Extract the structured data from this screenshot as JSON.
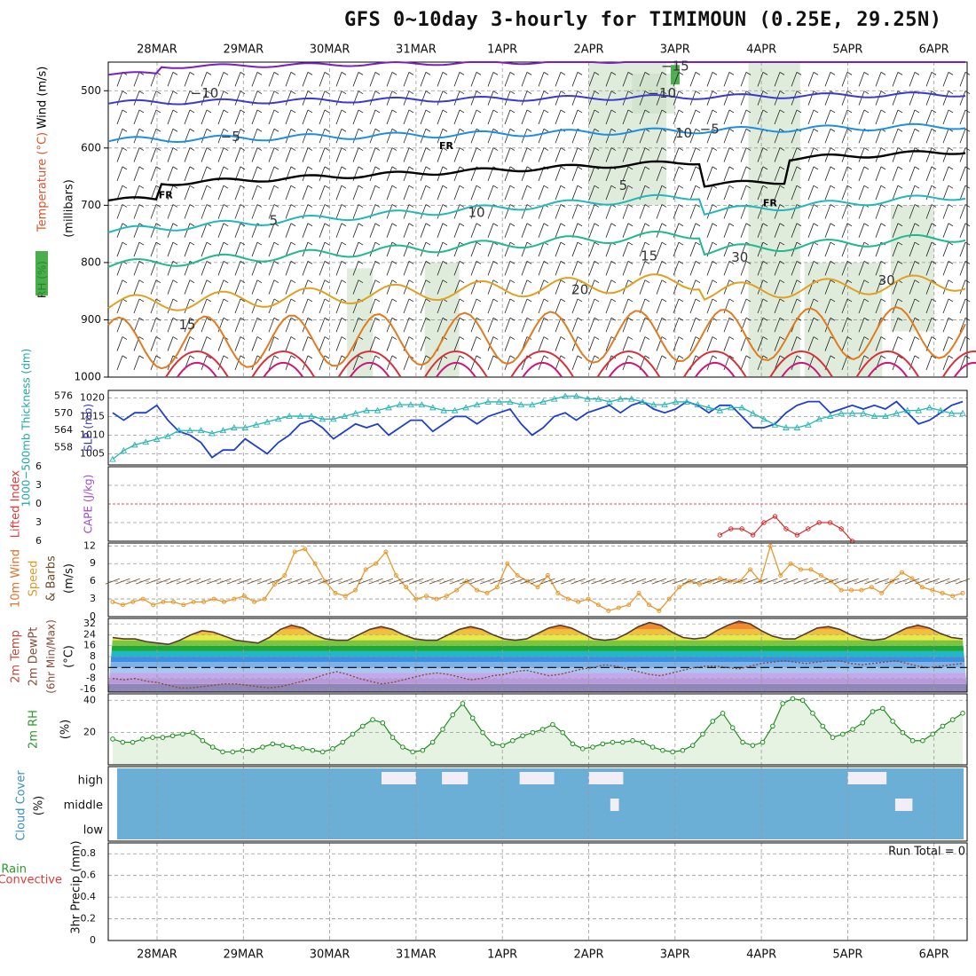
{
  "title": "GFS 0~10day 3-hourly for TIMIMOUN (0.25E, 29.25N)",
  "colors": {
    "temp_10": "#3a3ad0",
    "temp_5": "#1e8fe0",
    "freeze": "#000000",
    "temp_pos5": "#20b8b8",
    "temp_pos10": "#20b890",
    "temp_15": "#e0a020",
    "temp_20": "#e07b20",
    "temp_25": "#d8303a",
    "temp_30": "#d0157a",
    "rh": "#c9e0c4",
    "slp": "#1f3fcf",
    "thickness": "#25b5b5",
    "wind10": "#e69a2e",
    "cape_li": "#d62d2d",
    "rh2m": "#1e8f1e",
    "cloud": "#6baed6",
    "grid": "#999999"
  },
  "chart_data": [
    {
      "id": "upper_air",
      "type": "contour",
      "ylabel_parts": [
        "RH (%)",
        "Temperature (°C)",
        "Wind (m/s)"
      ],
      "ylabel_units": "(millibars)",
      "y_ticks": [
        500,
        600,
        700,
        800,
        900,
        1000
      ],
      "ylim": [
        450,
        1000
      ],
      "x_dates": [
        "28MAR",
        "29MAR",
        "30MAR",
        "31MAR",
        "1APR",
        "2APR",
        "3APR",
        "4APR",
        "5APR",
        "6APR"
      ],
      "contour_labels": [
        {
          "label": "−15",
          "day": 6.0,
          "p": 458
        },
        {
          "label": "−10",
          "day": 0.55,
          "p": 505
        },
        {
          "label": "−10",
          "day": 5.85,
          "p": 505
        },
        {
          "label": "−5",
          "day": 0.85,
          "p": 581
        },
        {
          "label": "−5",
          "day": 6.4,
          "p": 568
        },
        {
          "label": "FR",
          "day": 0.1,
          "p": 683
        },
        {
          "label": "FR",
          "day": 3.35,
          "p": 597
        },
        {
          "label": "FR",
          "day": 7.1,
          "p": 697
        },
        {
          "label": "5",
          "day": 1.35,
          "p": 727
        },
        {
          "label": "5",
          "day": 5.4,
          "p": 666
        },
        {
          "label": "10",
          "day": 3.7,
          "p": 713
        },
        {
          "label": "15",
          "day": 0.35,
          "p": 909
        },
        {
          "label": "15",
          "day": 5.7,
          "p": 789
        },
        {
          "label": "20",
          "day": 4.9,
          "p": 848
        },
        {
          "label": "30",
          "day": 6.75,
          "p": 792
        },
        {
          "label": "30",
          "day": 8.45,
          "p": 832
        },
        {
          "label": "10",
          "day": 6.1,
          "p": 575
        }
      ]
    },
    {
      "id": "slp_thickness",
      "type": "line",
      "ylabel_left": "1000−500mb Thickness (dm)",
      "ylabel_right": "SLP (mb)",
      "left_ticks": [
        558,
        564,
        570,
        576
      ],
      "right_ticks": [
        1005,
        1010,
        1015,
        1020
      ],
      "thick_ylim": [
        552,
        578
      ],
      "slp_ylim": [
        1002,
        1022
      ],
      "series": [
        {
          "name": "SLP (mb)",
          "values": [
            1016,
            1014,
            1016,
            1016,
            1018,
            1014,
            1011,
            1010,
            1008,
            1004,
            1006,
            1006,
            1009,
            1007,
            1005,
            1008,
            1010,
            1013,
            1014,
            1012,
            1009,
            1011,
            1013,
            1012,
            1013,
            1010,
            1012,
            1014,
            1014,
            1011,
            1013,
            1015,
            1015,
            1013,
            1015,
            1016,
            1017,
            1013,
            1010,
            1012,
            1015,
            1016,
            1014,
            1016,
            1017,
            1018,
            1016,
            1018,
            1019,
            1017,
            1016,
            1017,
            1019,
            1018,
            1016,
            1018,
            1018,
            1015,
            1012,
            1012,
            1013,
            1016,
            1018,
            1019,
            1019,
            1016,
            1017,
            1018,
            1017,
            1018,
            1017,
            1019,
            1016,
            1013,
            1014,
            1016,
            1018,
            1019
          ]
        },
        {
          "name": "Thickness (dm)",
          "values": [
            554,
            557,
            559,
            560,
            561,
            562,
            564,
            564,
            564,
            563,
            564,
            565,
            565,
            566,
            567,
            568,
            569,
            569,
            569,
            568,
            568,
            569,
            570,
            571,
            571,
            572,
            573,
            573,
            573,
            572,
            571,
            571,
            572,
            573,
            574,
            574,
            574,
            573,
            573,
            574,
            575,
            576,
            576,
            575,
            575,
            574,
            575,
            575,
            574,
            573,
            573,
            574,
            574,
            573,
            572,
            571,
            572,
            572,
            570,
            568,
            566,
            565,
            565,
            566,
            568,
            569,
            570,
            570,
            570,
            569,
            569,
            570,
            571,
            571,
            572,
            571,
            570,
            570
          ]
        }
      ]
    },
    {
      "id": "cape_li",
      "type": "line",
      "ylabel": [
        "Lifted Index",
        "CAPE (J/kg)"
      ],
      "y_ticks": [
        "6",
        "3",
        "0",
        "3",
        "6"
      ],
      "ylim": [
        -6,
        6
      ],
      "series": [
        {
          "name": "Lifted Index",
          "start_index": 55,
          "values": [
            5,
            4,
            4,
            5,
            3,
            2,
            4,
            5,
            4,
            3,
            3,
            4,
            6
          ]
        }
      ]
    },
    {
      "id": "wind10m",
      "type": "line",
      "ylabel": [
        "10m Wind",
        "Speed",
        "& Barbs",
        "(m/s)"
      ],
      "y_ticks": [
        0,
        3,
        6,
        9,
        12
      ],
      "ylim": [
        0,
        12.5
      ],
      "series": [
        {
          "name": "10m Wind Speed",
          "values": [
            2.5,
            2,
            2.5,
            3,
            2,
            2.5,
            2.5,
            2,
            2.5,
            2.5,
            3,
            2.5,
            3,
            3.5,
            2.5,
            3,
            5.5,
            7,
            11,
            11.5,
            9,
            6,
            4,
            3.5,
            4.5,
            8,
            9,
            11,
            7,
            5,
            3,
            3.5,
            3,
            3.5,
            4.5,
            6,
            4.5,
            4,
            5,
            9,
            7,
            6,
            5,
            7,
            4,
            3,
            2.5,
            3,
            2,
            1,
            1.5,
            2,
            4,
            2,
            1,
            3,
            5,
            6,
            5.5,
            6,
            6.5,
            6,
            6,
            8,
            6,
            12,
            7,
            9,
            8,
            8,
            7,
            6,
            4.5,
            4.5,
            4.5,
            5,
            4,
            6,
            7.5,
            6.5,
            5,
            4.5,
            4,
            3.5,
            4
          ]
        }
      ]
    },
    {
      "id": "temp2m",
      "type": "area",
      "ylabel": [
        "2m Temp",
        "2m DewPt",
        "(6hr Min/Max)",
        "(°C)"
      ],
      "y_ticks": [
        -16,
        -8,
        0,
        8,
        16,
        24,
        32
      ],
      "ylim": [
        -18,
        36
      ],
      "series": [
        {
          "name": "2m Temp",
          "values": [
            22,
            21,
            21,
            19,
            18,
            17,
            20,
            24,
            27,
            26,
            23,
            20,
            19,
            18,
            22,
            28,
            31,
            29,
            24,
            21,
            20,
            20,
            24,
            28,
            30,
            28,
            24,
            21,
            20,
            20,
            24,
            28,
            30,
            28,
            24,
            21,
            20,
            21,
            25,
            29,
            31,
            29,
            25,
            21,
            20,
            21,
            25,
            30,
            33,
            31,
            26,
            22,
            21,
            22,
            27,
            31,
            34,
            32,
            27,
            23,
            21,
            21,
            25,
            29,
            30,
            28,
            24,
            21,
            20,
            21,
            25,
            29,
            31,
            29,
            25,
            22,
            21
          ]
        },
        {
          "name": "2m DewPt",
          "values": [
            -8,
            -9,
            -8,
            -10,
            -11,
            -13,
            -15,
            -15,
            -14,
            -13,
            -12,
            -12,
            -13,
            -14,
            -15,
            -14,
            -12,
            -10,
            -8,
            -5,
            -3,
            -5,
            -8,
            -10,
            -12,
            -11,
            -9,
            -7,
            -5,
            -4,
            -5,
            -7,
            -9,
            -8,
            -6,
            -5,
            -3,
            -2,
            -4,
            -6,
            -5,
            -3,
            -1,
            0,
            2,
            1,
            -1,
            -3,
            -5,
            -6,
            -4,
            -2,
            0,
            1,
            1,
            0,
            -1,
            1,
            3,
            4,
            5,
            4,
            3,
            4,
            5,
            5,
            3,
            2,
            3,
            4,
            5,
            3,
            1,
            0,
            1,
            2,
            3
          ]
        }
      ]
    },
    {
      "id": "rh2m",
      "type": "area",
      "ylabel": [
        "2m RH",
        "(%)"
      ],
      "y_ticks": [
        20,
        40
      ],
      "ylim": [
        0,
        44
      ],
      "series": [
        {
          "name": "2m RH",
          "values": [
            16,
            14,
            14,
            16,
            17,
            17,
            18,
            19,
            20,
            15,
            11,
            8,
            8,
            9,
            9,
            11,
            13,
            12,
            11,
            10,
            9,
            8,
            10,
            14,
            19,
            24,
            28,
            26,
            17,
            11,
            8,
            9,
            14,
            22,
            31,
            38,
            29,
            20,
            13,
            12,
            15,
            18,
            20,
            22,
            25,
            20,
            13,
            10,
            11,
            13,
            14,
            14,
            15,
            14,
            11,
            9,
            8,
            9,
            12,
            19,
            27,
            32,
            23,
            14,
            12,
            14,
            24,
            38,
            41,
            40,
            32,
            24,
            17,
            19,
            22,
            26,
            33,
            35,
            27,
            20,
            15,
            15,
            19,
            24,
            28,
            32
          ]
        }
      ]
    },
    {
      "id": "cloud",
      "type": "heatmap",
      "ylabel": [
        "Cloud Cover",
        "(%)"
      ],
      "levels": [
        "high",
        "middle",
        "low"
      ]
    },
    {
      "id": "precip",
      "type": "bar",
      "ylabel": [
        "Total / Rain",
        "Convective",
        "3hr Precip (mm)"
      ],
      "y_ticks": [
        "0",
        "0.2",
        "0.4",
        "0.6",
        "0.8"
      ],
      "ylim": [
        0,
        0.9
      ],
      "run_total": "Run Total = 0",
      "x_dates_bottom": [
        "28MAR",
        "29MAR",
        "30MAR",
        "31MAR",
        "1APR",
        "2APR",
        "3APR",
        "4APR",
        "5APR",
        "6APR"
      ]
    }
  ]
}
